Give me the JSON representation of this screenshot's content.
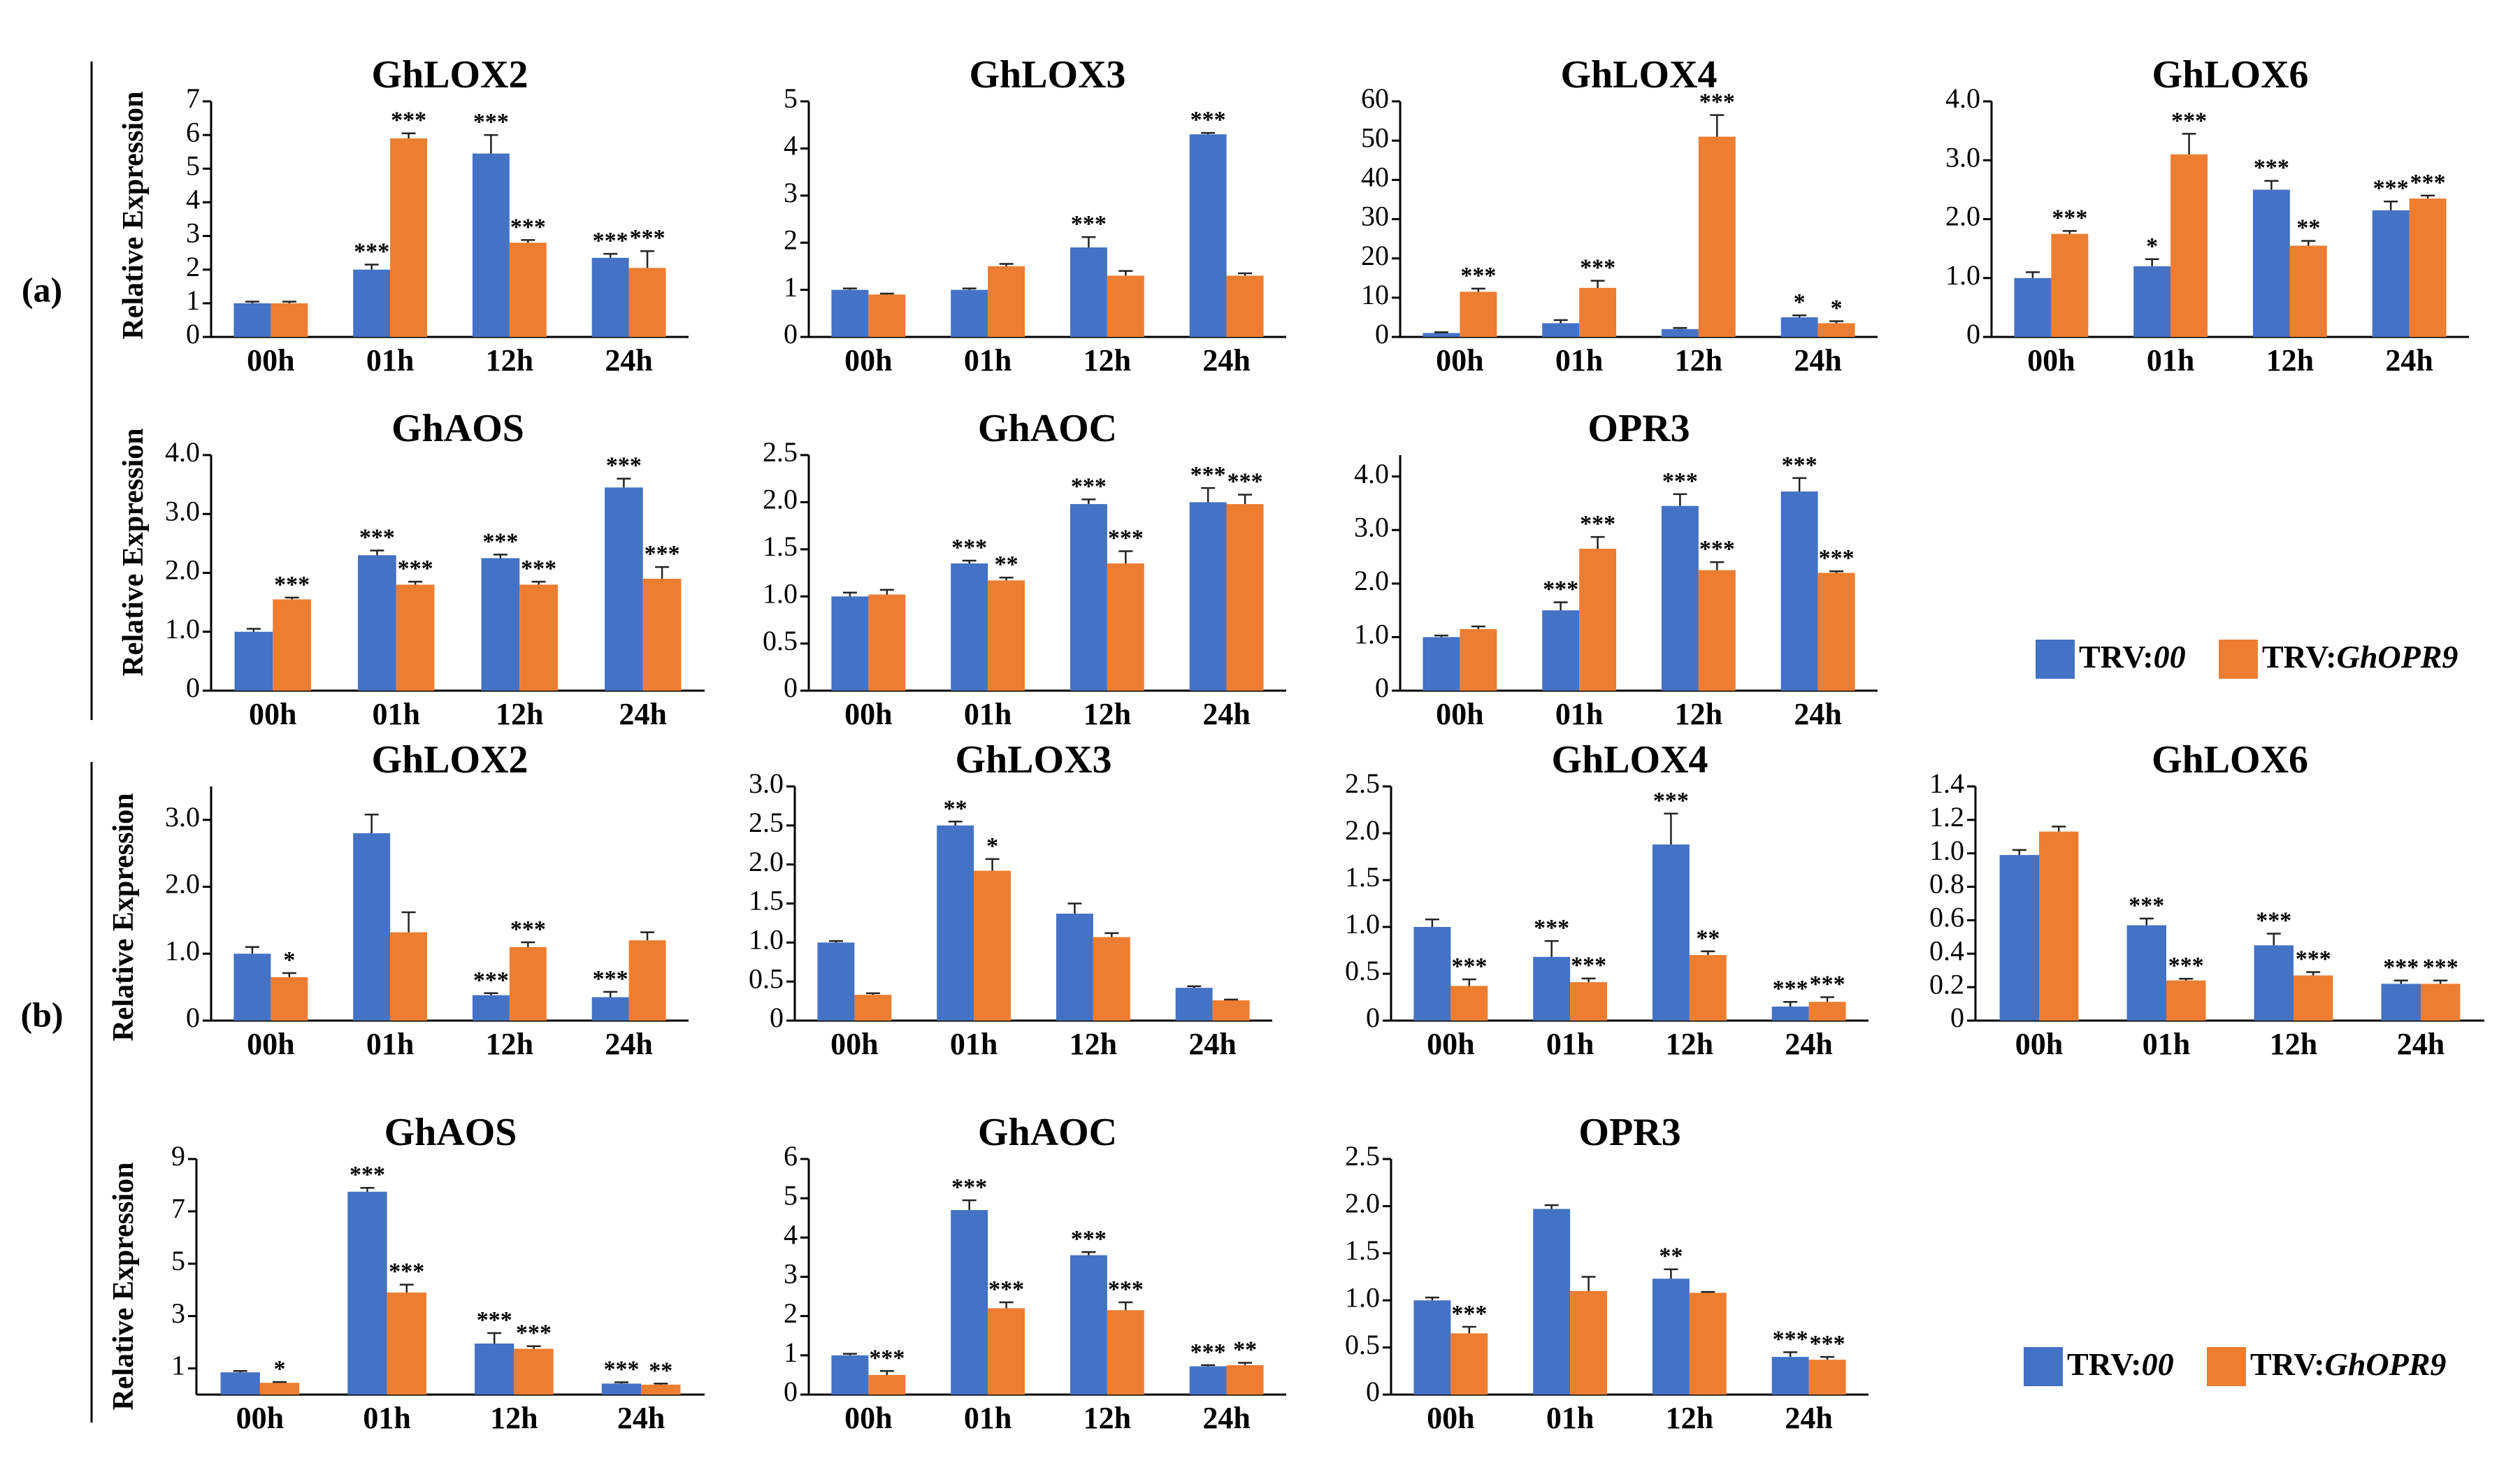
{
  "panel_labels": [
    "(a)",
    "(b)"
  ],
  "y_axis_label": "Relative Expression",
  "categories": [
    "00h",
    "01h",
    "12h",
    "24h"
  ],
  "series_names": [
    "TRV:00",
    "TRV:GhOPR9"
  ],
  "legend": {
    "prefix": "TRV:",
    "series1_suffix": "00",
    "series2_suffix": "GhOPR9"
  },
  "colors": {
    "series1": "#4472C4",
    "series2": "#ED7D31",
    "axis": "#000000",
    "error": "#222222"
  },
  "chart_data": [
    {
      "id": "a-lox2",
      "panel": "a",
      "type": "bar",
      "title": "GhLOX2",
      "ylim": [
        0,
        7
      ],
      "yticks": [
        "0",
        "1",
        "2",
        "3",
        "4",
        "5",
        "6",
        "7"
      ],
      "series": [
        {
          "name": "TRV:00",
          "values": [
            1.0,
            2.0,
            5.45,
            2.35
          ],
          "errors": [
            0.05,
            0.15,
            0.55,
            0.12
          ],
          "sig": [
            "",
            "***",
            "***",
            "***"
          ]
        },
        {
          "name": "TRV:GhOPR9",
          "values": [
            1.0,
            5.9,
            2.8,
            2.05
          ],
          "errors": [
            0.05,
            0.15,
            0.08,
            0.5
          ],
          "sig": [
            "",
            "***",
            "***",
            "***"
          ]
        }
      ]
    },
    {
      "id": "a-lox3",
      "panel": "a",
      "type": "bar",
      "title": "GhLOX3",
      "ylim": [
        0,
        5
      ],
      "yticks": [
        "0",
        "1",
        "2",
        "3",
        "4",
        "5"
      ],
      "series": [
        {
          "name": "TRV:00",
          "values": [
            1.0,
            1.0,
            1.9,
            4.3
          ],
          "errors": [
            0.03,
            0.03,
            0.22,
            0.03
          ],
          "sig": [
            "",
            "",
            "***",
            "***"
          ]
        },
        {
          "name": "TRV:GhOPR9",
          "values": [
            0.9,
            1.5,
            1.3,
            1.3
          ],
          "errors": [
            0.02,
            0.05,
            0.1,
            0.05
          ],
          "sig": [
            "",
            "",
            "",
            ""
          ]
        }
      ]
    },
    {
      "id": "a-lox4",
      "panel": "a",
      "type": "bar",
      "title": "GhLOX4",
      "ylim": [
        0,
        60
      ],
      "yticks": [
        "0",
        "10",
        "20",
        "30",
        "40",
        "50",
        "60"
      ],
      "series": [
        {
          "name": "TRV:00",
          "values": [
            1.0,
            3.5,
            2.0,
            5.0
          ],
          "errors": [
            0.2,
            0.8,
            0.3,
            0.5
          ],
          "sig": [
            "",
            "",
            "",
            "*"
          ]
        },
        {
          "name": "TRV:GhOPR9",
          "values": [
            11.5,
            12.5,
            51.0,
            3.5
          ],
          "errors": [
            0.8,
            1.8,
            5.5,
            0.5
          ],
          "sig": [
            "***",
            "***",
            "***",
            "*"
          ]
        }
      ]
    },
    {
      "id": "a-lox6",
      "panel": "a",
      "type": "bar",
      "title": "GhLOX6",
      "ylim": [
        0,
        4
      ],
      "yticks": [
        "0",
        "1.0",
        "2.0",
        "3.0",
        "4.0"
      ],
      "series": [
        {
          "name": "TRV:00",
          "values": [
            1.0,
            1.2,
            2.5,
            2.15
          ],
          "errors": [
            0.1,
            0.12,
            0.15,
            0.15
          ],
          "sig": [
            "",
            "*",
            "***",
            "***"
          ]
        },
        {
          "name": "TRV:GhOPR9",
          "values": [
            1.75,
            3.1,
            1.55,
            2.35
          ],
          "errors": [
            0.05,
            0.35,
            0.08,
            0.05
          ],
          "sig": [
            "***",
            "***",
            "**",
            "***"
          ]
        }
      ]
    },
    {
      "id": "a-aos",
      "panel": "a",
      "type": "bar",
      "title": "GhAOS",
      "ylim": [
        0,
        4
      ],
      "yticks": [
        "0",
        "1.0",
        "2.0",
        "3.0",
        "4.0"
      ],
      "series": [
        {
          "name": "TRV:00",
          "values": [
            1.0,
            2.3,
            2.25,
            3.45
          ],
          "errors": [
            0.05,
            0.08,
            0.06,
            0.15
          ],
          "sig": [
            "",
            "***",
            "***",
            "***"
          ]
        },
        {
          "name": "TRV:GhOPR9",
          "values": [
            1.55,
            1.8,
            1.8,
            1.9
          ],
          "errors": [
            0.03,
            0.05,
            0.05,
            0.2
          ],
          "sig": [
            "***",
            "***",
            "***",
            "***"
          ]
        }
      ]
    },
    {
      "id": "a-aoc",
      "panel": "a",
      "type": "bar",
      "title": "GhAOC",
      "ylim": [
        0,
        2.5
      ],
      "yticks": [
        "0",
        "0.5",
        "1.0",
        "1.5",
        "2.0",
        "2.5"
      ],
      "series": [
        {
          "name": "TRV:00",
          "values": [
            1.0,
            1.35,
            1.98,
            2.0
          ],
          "errors": [
            0.04,
            0.03,
            0.05,
            0.15
          ],
          "sig": [
            "",
            "***",
            "***",
            "***"
          ]
        },
        {
          "name": "TRV:GhOPR9",
          "values": [
            1.02,
            1.17,
            1.35,
            1.98
          ],
          "errors": [
            0.05,
            0.03,
            0.13,
            0.1
          ],
          "sig": [
            "",
            "**",
            "***",
            "***"
          ]
        }
      ]
    },
    {
      "id": "a-opr3",
      "panel": "a",
      "type": "bar",
      "title": "OPR3",
      "ylim": [
        0,
        4.4
      ],
      "yticks": [
        "0",
        "1.0",
        "2.0",
        "3.0",
        "4.0"
      ],
      "series": [
        {
          "name": "TRV:00",
          "values": [
            1.0,
            1.5,
            3.45,
            3.72
          ],
          "errors": [
            0.03,
            0.15,
            0.22,
            0.25
          ],
          "sig": [
            "",
            "***",
            "***",
            "***"
          ]
        },
        {
          "name": "TRV:GhOPR9",
          "values": [
            1.15,
            2.65,
            2.25,
            2.2
          ],
          "errors": [
            0.05,
            0.22,
            0.15,
            0.03
          ],
          "sig": [
            "",
            "***",
            "***",
            "***"
          ]
        }
      ]
    },
    {
      "id": "b-lox2",
      "panel": "b",
      "type": "bar",
      "title": "GhLOX2",
      "ylim": [
        0,
        3.5
      ],
      "yticks": [
        "0",
        "1.0",
        "2.0",
        "3.0"
      ],
      "series": [
        {
          "name": "TRV:00",
          "values": [
            1.0,
            2.8,
            0.38,
            0.35
          ],
          "errors": [
            0.1,
            0.28,
            0.03,
            0.08
          ],
          "sig": [
            "",
            "",
            "***",
            "***"
          ]
        },
        {
          "name": "TRV:GhOPR9",
          "values": [
            0.65,
            1.32,
            1.1,
            1.2
          ],
          "errors": [
            0.06,
            0.3,
            0.07,
            0.12
          ],
          "sig": [
            "*",
            "",
            "***",
            ""
          ]
        }
      ]
    },
    {
      "id": "b-lox3",
      "panel": "b",
      "type": "bar",
      "title": "GhLOX3",
      "ylim": [
        0,
        3
      ],
      "yticks": [
        "0",
        "0.5",
        "1.0",
        "1.5",
        "2.0",
        "2.5",
        "3.0"
      ],
      "series": [
        {
          "name": "TRV:00",
          "values": [
            1.0,
            2.5,
            1.37,
            0.42
          ],
          "errors": [
            0.02,
            0.05,
            0.13,
            0.02
          ],
          "sig": [
            "",
            "**",
            "",
            ""
          ]
        },
        {
          "name": "TRV:GhOPR9",
          "values": [
            0.33,
            1.92,
            1.07,
            0.26
          ],
          "errors": [
            0.02,
            0.15,
            0.05,
            0.01
          ],
          "sig": [
            "",
            "*",
            "",
            ""
          ]
        }
      ]
    },
    {
      "id": "b-lox4",
      "panel": "b",
      "type": "bar",
      "title": "GhLOX4",
      "ylim": [
        0,
        2.5
      ],
      "yticks": [
        "0",
        "0.5",
        "1.0",
        "1.5",
        "2.0",
        "2.5"
      ],
      "series": [
        {
          "name": "TRV:00",
          "values": [
            1.0,
            0.68,
            1.88,
            0.15
          ],
          "errors": [
            0.08,
            0.17,
            0.33,
            0.05
          ],
          "sig": [
            "",
            "***",
            "***",
            "***"
          ]
        },
        {
          "name": "TRV:GhOPR9",
          "values": [
            0.37,
            0.41,
            0.7,
            0.2
          ],
          "errors": [
            0.07,
            0.04,
            0.04,
            0.05
          ],
          "sig": [
            "***",
            "***",
            "**",
            "***"
          ]
        }
      ]
    },
    {
      "id": "b-lox6",
      "panel": "b",
      "type": "bar",
      "title": "GhLOX6",
      "ylim": [
        0,
        1.4
      ],
      "yticks": [
        "0",
        "0.2",
        "0.4",
        "0.6",
        "0.8",
        "1.0",
        "1.2",
        "1.4"
      ],
      "series": [
        {
          "name": "TRV:00",
          "values": [
            0.99,
            0.57,
            0.45,
            0.22
          ],
          "errors": [
            0.03,
            0.04,
            0.07,
            0.02
          ],
          "sig": [
            "",
            "***",
            "***",
            "***"
          ]
        },
        {
          "name": "TRV:GhOPR9",
          "values": [
            1.13,
            0.24,
            0.27,
            0.22
          ],
          "errors": [
            0.03,
            0.01,
            0.02,
            0.02
          ],
          "sig": [
            "",
            "***",
            "***",
            "***"
          ]
        }
      ]
    },
    {
      "id": "b-aos",
      "panel": "b",
      "type": "bar",
      "title": "GhAOS",
      "ylim": [
        0,
        9
      ],
      "yticks": [
        "1",
        "3",
        "5",
        "7",
        "9"
      ],
      "series": [
        {
          "name": "TRV:00",
          "values": [
            0.85,
            7.75,
            1.95,
            0.42
          ],
          "errors": [
            0.05,
            0.15,
            0.4,
            0.05
          ],
          "sig": [
            "",
            "***",
            "***",
            "***"
          ]
        },
        {
          "name": "TRV:GhOPR9",
          "values": [
            0.45,
            3.9,
            1.75,
            0.38
          ],
          "errors": [
            0.03,
            0.3,
            0.1,
            0.04
          ],
          "sig": [
            "*",
            "***",
            "***",
            "**"
          ]
        }
      ]
    },
    {
      "id": "b-aoc",
      "panel": "b",
      "type": "bar",
      "title": "GhAOC",
      "ylim": [
        0,
        6
      ],
      "yticks": [
        "0",
        "1",
        "2",
        "3",
        "4",
        "5",
        "6"
      ],
      "series": [
        {
          "name": "TRV:00",
          "values": [
            1.0,
            4.7,
            3.55,
            0.72
          ],
          "errors": [
            0.04,
            0.25,
            0.08,
            0.03
          ],
          "sig": [
            "",
            "***",
            "***",
            "***"
          ]
        },
        {
          "name": "TRV:GhOPR9",
          "values": [
            0.5,
            2.2,
            2.15,
            0.75
          ],
          "errors": [
            0.1,
            0.15,
            0.2,
            0.06
          ],
          "sig": [
            "***",
            "***",
            "***",
            "**"
          ]
        }
      ]
    },
    {
      "id": "b-opr3",
      "panel": "b",
      "type": "bar",
      "title": "OPR3",
      "ylim": [
        0,
        2.5
      ],
      "yticks": [
        "0",
        "0.5",
        "1.0",
        "1.5",
        "2.0",
        "2.5"
      ],
      "series": [
        {
          "name": "TRV:00",
          "values": [
            1.0,
            1.97,
            1.23,
            0.4
          ],
          "errors": [
            0.03,
            0.04,
            0.1,
            0.05
          ],
          "sig": [
            "",
            "",
            "**",
            "***"
          ]
        },
        {
          "name": "TRV:GhOPR9",
          "values": [
            0.65,
            1.1,
            1.08,
            0.37
          ],
          "errors": [
            0.07,
            0.15,
            0.01,
            0.03
          ],
          "sig": [
            "***",
            "",
            "",
            "***"
          ]
        }
      ]
    }
  ]
}
